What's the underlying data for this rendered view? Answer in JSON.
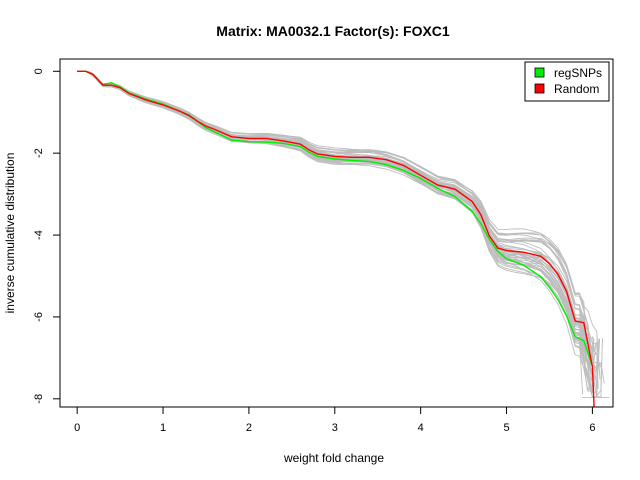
{
  "chart_data": {
    "type": "line",
    "title": "Matrix: MA0032.1 Factor(s): FOXC1",
    "xlabel": "weight fold change",
    "ylabel": "inverse cumulative distribution",
    "xlim": [
      -0.2,
      6.24
    ],
    "ylim": [
      -8.2,
      0.3
    ],
    "xticks": [
      "0",
      "1",
      "2",
      "3",
      "4",
      "5",
      "6"
    ],
    "yticks": [
      "0",
      "-2",
      "-4",
      "-6",
      "-8"
    ],
    "grid": false,
    "legend_position": "top-right",
    "legend": [
      {
        "label": "regSNPs",
        "color": "#00ee00"
      },
      {
        "label": "Random",
        "color": "#ff0000"
      }
    ],
    "series": [
      {
        "name": "regSNPs",
        "color": "#00ee00",
        "x": [
          0,
          0.1,
          0.18,
          0.3,
          0.4,
          0.5,
          0.6,
          0.8,
          1.0,
          1.2,
          1.3,
          1.4,
          1.5,
          1.6,
          1.8,
          2.0,
          2.2,
          2.4,
          2.6,
          2.7,
          2.8,
          3.0,
          3.2,
          3.4,
          3.6,
          3.8,
          4.0,
          4.2,
          4.4,
          4.6,
          4.7,
          4.8,
          4.9,
          5.0,
          5.2,
          5.4,
          5.5,
          5.6,
          5.7,
          5.8,
          5.9,
          6.0
        ],
        "y": [
          0,
          0,
          -0.07,
          -0.32,
          -0.28,
          -0.38,
          -0.52,
          -0.68,
          -0.8,
          -0.98,
          -1.06,
          -1.22,
          -1.38,
          -1.48,
          -1.68,
          -1.72,
          -1.73,
          -1.76,
          -1.84,
          -1.98,
          -2.08,
          -2.14,
          -2.18,
          -2.2,
          -2.28,
          -2.42,
          -2.62,
          -2.86,
          -3.06,
          -3.42,
          -3.72,
          -4.1,
          -4.4,
          -4.58,
          -4.74,
          -5.02,
          -5.28,
          -5.58,
          -5.98,
          -6.48,
          -6.58,
          -7.2
        ]
      },
      {
        "name": "Random",
        "color": "#ff0000",
        "x": [
          0,
          0.1,
          0.18,
          0.3,
          0.4,
          0.5,
          0.6,
          0.8,
          1.0,
          1.2,
          1.3,
          1.4,
          1.5,
          1.6,
          1.8,
          2.0,
          2.2,
          2.4,
          2.6,
          2.7,
          2.8,
          3.0,
          3.2,
          3.4,
          3.6,
          3.8,
          4.0,
          4.2,
          4.4,
          4.6,
          4.7,
          4.8,
          4.9,
          5.0,
          5.2,
          5.4,
          5.5,
          5.6,
          5.7,
          5.8,
          5.9,
          6.0,
          6.02
        ],
        "y": [
          0,
          0,
          -0.07,
          -0.34,
          -0.34,
          -0.4,
          -0.54,
          -0.7,
          -0.82,
          -0.98,
          -1.08,
          -1.22,
          -1.34,
          -1.42,
          -1.6,
          -1.64,
          -1.64,
          -1.7,
          -1.78,
          -1.92,
          -2.02,
          -2.08,
          -2.1,
          -2.1,
          -2.16,
          -2.3,
          -2.54,
          -2.78,
          -2.88,
          -3.18,
          -3.5,
          -4.02,
          -4.32,
          -4.38,
          -4.42,
          -4.52,
          -4.7,
          -4.96,
          -5.38,
          -6.1,
          -6.14,
          -7.22,
          -8.3
        ]
      }
    ]
  }
}
